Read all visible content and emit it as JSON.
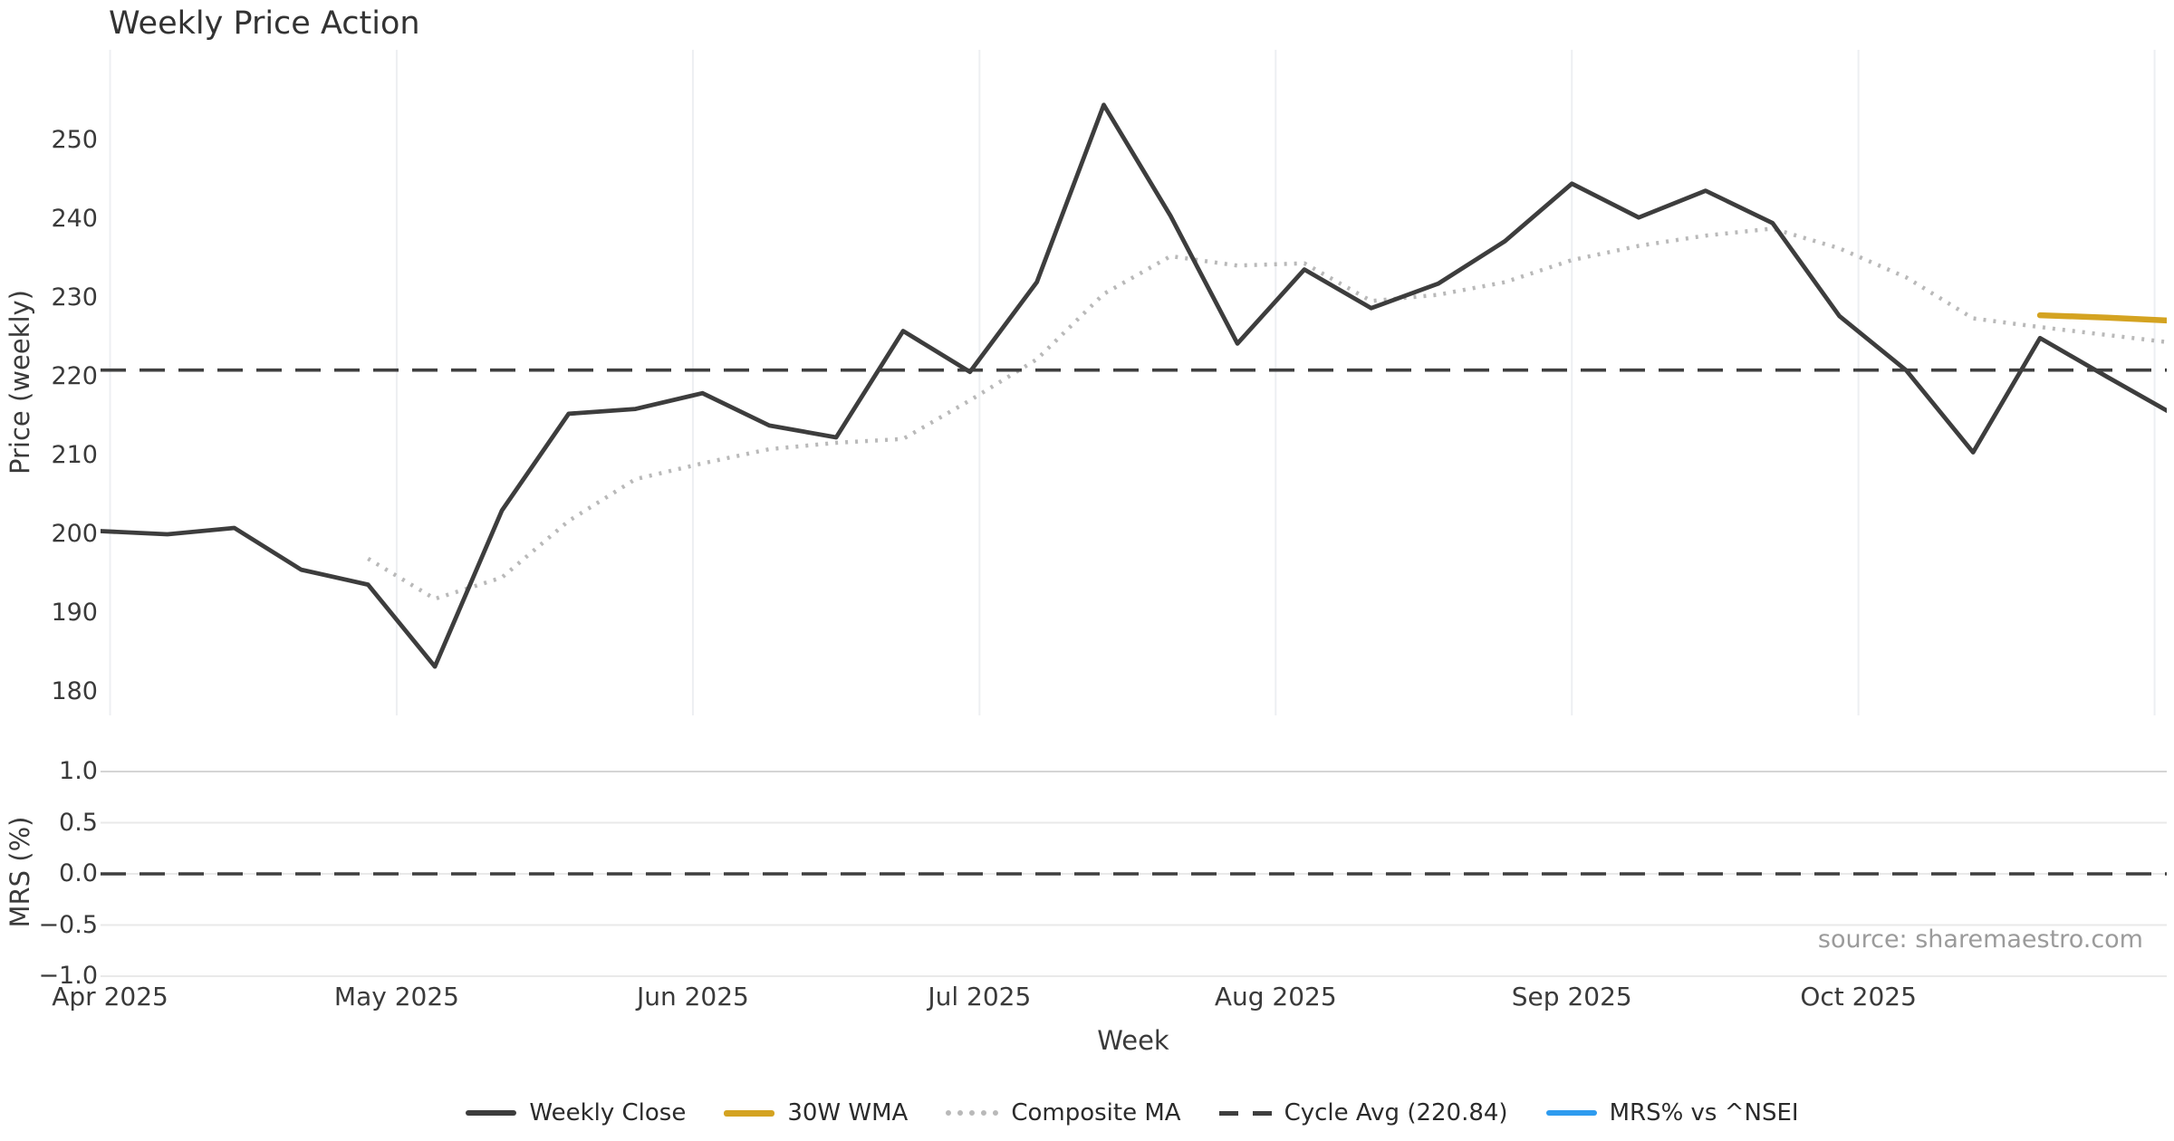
{
  "title": "Weekly Price Action",
  "xlabel": "Week",
  "source": "source: sharemaestro.com",
  "price_panel": {
    "ylabel": "Price (weekly)",
    "yticks": [
      250,
      240,
      230,
      220,
      210,
      200,
      190,
      180
    ]
  },
  "mrs_panel": {
    "ylabel": "MRS (%)",
    "yticks": [
      {
        "label": "1.0",
        "value": 1.0
      },
      {
        "label": "0.5",
        "value": 0.5
      },
      {
        "label": "0.0",
        "value": 0.0
      },
      {
        "label": "−0.5",
        "value": -0.5
      },
      {
        "label": "−1.0",
        "value": -1.0
      }
    ]
  },
  "month_ticks": [
    {
      "label": "Apr 2025",
      "day": 1
    },
    {
      "label": "May 2025",
      "day": 31
    },
    {
      "label": "Jun 2025",
      "day": 62
    },
    {
      "label": "Jul 2025",
      "day": 92
    },
    {
      "label": "Aug 2025",
      "day": 123
    },
    {
      "label": "Sep 2025",
      "day": 154
    },
    {
      "label": "Oct 2025",
      "day": 184
    }
  ],
  "gridline_days": [
    1,
    31,
    62,
    92,
    123,
    154,
    184,
    215
  ],
  "legend": [
    {
      "label": "Weekly Close",
      "style": "solid",
      "color": "#3d3d3d",
      "thickness": 6
    },
    {
      "label": "30W WMA",
      "style": "solid",
      "color": "#d4a321",
      "thickness": 7
    },
    {
      "label": "Composite MA",
      "style": "dotted",
      "color": "#b9b9b9",
      "thickness": 6
    },
    {
      "label": "Cycle Avg (220.84)",
      "style": "dashed",
      "color": "#3f3f3f",
      "thickness": 5
    },
    {
      "label": "MRS% vs ^NSEI",
      "style": "solid",
      "color": "#2e9bef",
      "thickness": 6
    }
  ],
  "chart_data": [
    {
      "type": "line",
      "title": "Weekly Price Action",
      "xlabel": "Week",
      "ylabel": "Price (weekly)",
      "x_tick_labels": [
        "Apr 2025",
        "May 2025",
        "Jun 2025",
        "Jul 2025",
        "Aug 2025",
        "Sep 2025",
        "Oct 2025"
      ],
      "x_unit": "weekly points, week 1 = Mar 31 2025, through early Nov 2025",
      "ylim": [
        177.5,
        261.5
      ],
      "yticks": [
        180,
        190,
        200,
        210,
        220,
        230,
        240,
        250
      ],
      "grid": "vertical month gridlines only",
      "legend_position": "bottom center",
      "series": [
        {
          "name": "Weekly Close",
          "color": "#3d3d3d",
          "style": "solid",
          "width": 4.8,
          "start_week": 1,
          "values": [
            200.4,
            200.0,
            200.8,
            195.5,
            193.6,
            183.2,
            203.0,
            215.3,
            215.9,
            217.9,
            213.8,
            212.3,
            225.8,
            220.6,
            232.0,
            254.5,
            240.4,
            224.2,
            233.6,
            228.7,
            231.8,
            237.2,
            244.5,
            240.2,
            243.6,
            239.5,
            227.7,
            220.8,
            210.4,
            224.9,
            220.0,
            215.2
          ]
        },
        {
          "name": "Composite MA",
          "color": "#b9b9b9",
          "style": "dotted",
          "width": 4.5,
          "start_week": 5,
          "values": [
            196.9,
            191.8,
            194.5,
            201.7,
            207.0,
            209.0,
            210.8,
            211.6,
            212.1,
            217.0,
            222.2,
            230.5,
            235.3,
            234.1,
            234.4,
            229.6,
            230.4,
            232.0,
            234.8,
            236.6,
            237.9,
            238.8,
            236.3,
            232.6,
            227.4,
            226.3,
            225.3,
            224.3
          ]
        },
        {
          "name": "30W WMA",
          "color": "#d4a321",
          "style": "solid",
          "width": 6.5,
          "start_week": 30,
          "values": [
            227.8,
            227.5,
            227.1
          ]
        },
        {
          "name": "Cycle Avg (220.84)",
          "color": "#3f3f3f",
          "style": "dashed",
          "type": "hline",
          "value": 220.84
        },
        {
          "name": "MRS% vs ^NSEI",
          "color": "#2e9bef",
          "style": "solid",
          "note": "legend entry only, no line visible in plot area"
        }
      ]
    },
    {
      "type": "line",
      "ylabel": "MRS (%)",
      "ylim": [
        -1.1,
        1.1
      ],
      "yticks": [
        -1.0,
        -0.5,
        0.0,
        0.5,
        1.0
      ],
      "grid": "horizontal gridlines",
      "series": [
        {
          "name": "zero reference",
          "color": "#3f3f3f",
          "style": "dashed",
          "type": "hline",
          "value": 0.0
        }
      ]
    }
  ]
}
